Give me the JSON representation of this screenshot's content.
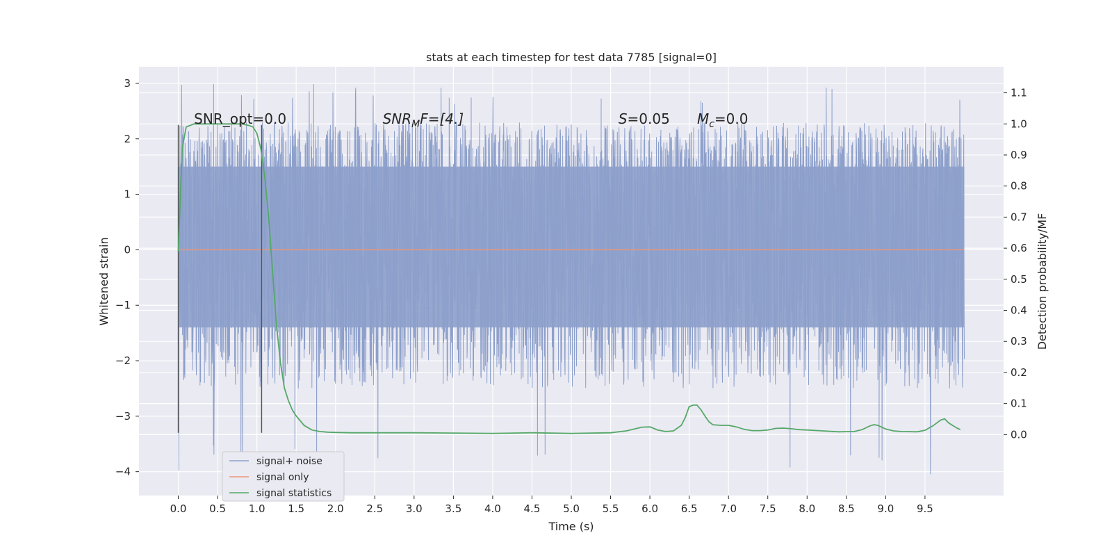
{
  "chart_data": {
    "type": "line",
    "title": "stats at each timestep for test data 7785 [signal=0]",
    "xlabel": "Time (s)",
    "ylabel_left": "Whitened strain",
    "ylabel_right": "Detection probability/MF",
    "xlim": [
      -0.5,
      10.5
    ],
    "ylim_left": [
      -4.43,
      3.3
    ],
    "ylim_right": [
      -0.196,
      1.184
    ],
    "x_ticks": [
      0.0,
      0.5,
      1.0,
      1.5,
      2.0,
      2.5,
      3.0,
      3.5,
      4.0,
      4.5,
      5.0,
      5.5,
      6.0,
      6.5,
      7.0,
      7.5,
      8.0,
      8.5,
      9.0,
      9.5
    ],
    "x_tick_labels": [
      "0.0",
      "0.5",
      "1.0",
      "1.5",
      "2.0",
      "2.5",
      "3.0",
      "3.5",
      "4.0",
      "4.5",
      "5.0",
      "5.5",
      "6.0",
      "6.5",
      "7.0",
      "7.5",
      "8.0",
      "8.5",
      "9.0",
      "9.5"
    ],
    "y_left_ticks": [
      3,
      2,
      1,
      0,
      -1,
      -2,
      -3,
      -4
    ],
    "y_left_tick_labels": [
      "3",
      "2",
      "1",
      "0",
      "−1",
      "−2",
      "−3",
      "−4"
    ],
    "y_right_ticks": [
      1.1,
      1.0,
      0.9,
      0.8,
      0.7,
      0.6,
      0.5,
      0.4,
      0.3,
      0.2,
      0.1,
      0.0
    ],
    "y_right_tick_labels": [
      "1.1",
      "1.0",
      "0.9",
      "0.8",
      "0.7",
      "0.6",
      "0.5",
      "0.4",
      "0.3",
      "0.2",
      "0.1",
      "0.0"
    ],
    "grid": true,
    "legend_position": "lower-left",
    "annotations": {
      "snr_opt": {
        "text": "SNR_opt=0.0",
        "x": 0.2,
        "y": 2.2
      },
      "snr_mf": {
        "main": "SNR",
        "sub": "M",
        "rest": "F=[4.]",
        "x": 2.6,
        "y": 2.2
      },
      "s_stat": {
        "main": "S",
        "rest": "=0.05",
        "x": 5.6,
        "y": 2.2
      },
      "mc": {
        "main": "M",
        "sub": "c",
        "rest": "=0.0",
        "x": 6.6,
        "y": 2.2
      }
    },
    "vlines": [
      {
        "x": 0.0,
        "y0": -3.3,
        "y1": 2.25
      },
      {
        "x": 1.06,
        "y0": -3.3,
        "y1": 2.25
      }
    ],
    "series": [
      {
        "name": "signal+ noise",
        "color": "#8da0cb",
        "axis": "left",
        "x_range": [
          0.0,
          10.0
        ],
        "typical_range": [
          -1.4,
          1.5
        ],
        "min": -4.05,
        "max": 3.0
      },
      {
        "name": "signal only",
        "color": "#e9967a",
        "axis": "left",
        "x": [
          0.0,
          10.0
        ],
        "y": [
          0.0,
          0.0
        ]
      },
      {
        "name": "signal statistics",
        "color": "#55a868",
        "axis": "right",
        "x": [
          0.0,
          0.05,
          0.1,
          0.15,
          0.2,
          0.3,
          0.4,
          0.5,
          0.6,
          0.7,
          0.8,
          0.9,
          0.95,
          1.0,
          1.05,
          1.1,
          1.15,
          1.2,
          1.25,
          1.3,
          1.35,
          1.4,
          1.45,
          1.5,
          1.6,
          1.7,
          1.8,
          1.9,
          2.0,
          2.2,
          2.5,
          3.0,
          3.5,
          4.0,
          4.5,
          5.0,
          5.5,
          5.7,
          5.9,
          6.0,
          6.1,
          6.2,
          6.3,
          6.4,
          6.45,
          6.5,
          6.55,
          6.6,
          6.65,
          6.7,
          6.75,
          6.8,
          6.9,
          7.0,
          7.1,
          7.2,
          7.3,
          7.4,
          7.5,
          7.6,
          7.7,
          7.8,
          7.9,
          8.0,
          8.2,
          8.4,
          8.6,
          8.7,
          8.8,
          8.85,
          8.9,
          9.0,
          9.1,
          9.2,
          9.4,
          9.5,
          9.6,
          9.7,
          9.75,
          9.8,
          9.9,
          9.95
        ],
        "y": [
          0.59,
          0.92,
          0.99,
          0.995,
          1.0,
          1.0,
          1.0,
          1.0,
          1.0,
          1.0,
          1.0,
          0.995,
          0.99,
          0.97,
          0.92,
          0.83,
          0.7,
          0.52,
          0.35,
          0.23,
          0.15,
          0.11,
          0.08,
          0.06,
          0.03,
          0.015,
          0.01,
          0.008,
          0.007,
          0.006,
          0.006,
          0.006,
          0.005,
          0.004,
          0.006,
          0.004,
          0.006,
          0.012,
          0.024,
          0.025,
          0.015,
          0.01,
          0.012,
          0.03,
          0.055,
          0.09,
          0.095,
          0.095,
          0.08,
          0.06,
          0.042,
          0.032,
          0.03,
          0.03,
          0.025,
          0.017,
          0.013,
          0.013,
          0.015,
          0.02,
          0.021,
          0.019,
          0.016,
          0.015,
          0.012,
          0.009,
          0.01,
          0.016,
          0.028,
          0.032,
          0.03,
          0.018,
          0.012,
          0.01,
          0.009,
          0.014,
          0.028,
          0.047,
          0.051,
          0.038,
          0.022,
          0.016
        ]
      }
    ]
  }
}
